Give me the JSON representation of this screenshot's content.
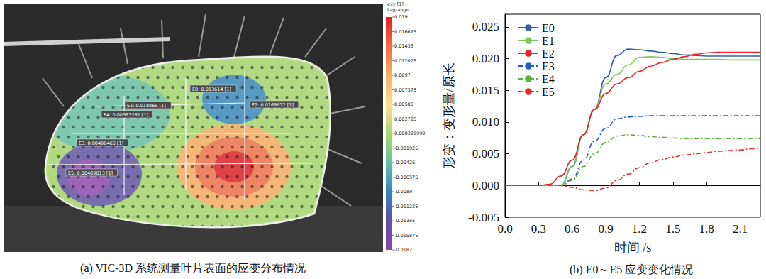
{
  "strain_map": {
    "caption": "(a) VIC-3D 系统测量叶片表面的应变分布情况",
    "colorbar": {
      "title": "exy [1] - Lagrange",
      "ticks": [
        0.019,
        0.016675,
        0.01435,
        0.012025,
        0.0097,
        0.007375,
        0.00505,
        0.002725,
        0.000399999,
        -0.001925,
        -0.00425,
        -0.006575,
        -0.0089,
        -0.011225,
        -0.01355,
        -0.015875,
        -0.0182
      ],
      "colors": [
        "#e31a1c",
        "#f46d43",
        "#fdae61",
        "#fee08b",
        "#a6d96a",
        "#66c2a5",
        "#3288bd",
        "#5e4fa2",
        "#8e44ad"
      ]
    },
    "points": [
      "E0: 0.013614 [1]",
      "E1: 0.018865 [1]",
      "E2: 0.0169972 [1]",
      "E4: 0.00383261 [1]",
      "E3: 0.00496465 [1]",
      "E5: 0.00489013 [1]"
    ]
  },
  "chart_data": {
    "type": "line",
    "caption": "(b) E0～E5 应变变化情况",
    "xlabel": "时间 /s",
    "ylabel": "形变：变形量/原长",
    "x": [
      0,
      0.1,
      0.2,
      0.3,
      0.4,
      0.5,
      0.6,
      0.7,
      0.8,
      0.9,
      1.0,
      1.1,
      1.2,
      1.3,
      1.4,
      1.5,
      1.6,
      1.7,
      1.8,
      1.9,
      2.0,
      2.1,
      2.2,
      2.28
    ],
    "series": [
      {
        "name": "E0",
        "color": "#3a5fa8",
        "line_style": "solid",
        "values": [
          0,
          0,
          0,
          0,
          0,
          0,
          0.003,
          0.008,
          0.012,
          0.017,
          0.0205,
          0.0215,
          0.0214,
          0.0212,
          0.021,
          0.0208,
          0.0206,
          0.0205,
          0.0204,
          0.0204,
          0.0204,
          0.0204,
          0.0204,
          0.0204
        ]
      },
      {
        "name": "E1",
        "color": "#7cc65a",
        "line_style": "solid",
        "values": [
          0,
          0,
          0,
          0,
          0,
          0,
          0.003,
          0.008,
          0.012,
          0.016,
          0.0175,
          0.019,
          0.0202,
          0.0203,
          0.0202,
          0.02,
          0.0199,
          0.0199,
          0.0199,
          0.0199,
          0.0198,
          0.0198,
          0.0198,
          0.0198
        ]
      },
      {
        "name": "E2",
        "color": "#e8262a",
        "line_style": "solid",
        "values": [
          0,
          0,
          0,
          0,
          0.0002,
          0.0015,
          0.004,
          0.008,
          0.012,
          0.0145,
          0.016,
          0.017,
          0.018,
          0.0188,
          0.0194,
          0.0199,
          0.0203,
          0.0207,
          0.0209,
          0.021,
          0.021,
          0.021,
          0.021,
          0.021
        ]
      },
      {
        "name": "E3",
        "color": "#2060c0",
        "line_style": "dashdot",
        "values": [
          0,
          0,
          0,
          0,
          0,
          0,
          0.001,
          0.004,
          0.007,
          0.009,
          0.0105,
          0.0108,
          0.0109,
          0.011,
          0.011,
          0.011,
          0.011,
          0.011,
          0.011,
          0.011,
          0.011,
          0.011,
          0.011,
          0.011
        ]
      },
      {
        "name": "E4",
        "color": "#5bb33b",
        "line_style": "dashdot",
        "values": [
          0,
          0,
          0,
          0,
          0,
          0,
          0.0008,
          0.003,
          0.005,
          0.0068,
          0.0078,
          0.008,
          0.0079,
          0.0077,
          0.0076,
          0.0075,
          0.0074,
          0.0074,
          0.0074,
          0.0074,
          0.0074,
          0.0074,
          0.0074,
          0.0074
        ]
      },
      {
        "name": "E5",
        "color": "#e0302a",
        "line_style": "dashdot",
        "values": [
          0,
          0,
          0,
          0,
          0,
          0,
          -0.0003,
          -0.0007,
          -0.0008,
          -0.0004,
          0.0008,
          0.0018,
          0.0028,
          0.0036,
          0.0041,
          0.0045,
          0.0048,
          0.005,
          0.0052,
          0.0054,
          0.0055,
          0.0056,
          0.0058,
          0.0059
        ]
      }
    ],
    "xlim": [
      0,
      2.28
    ],
    "ylim": [
      -0.005,
      0.027
    ],
    "xticks": [
      {
        "value": 0,
        "label": "0.0"
      },
      0.3,
      0.6,
      0.9,
      1.2,
      1.5,
      1.8,
      2.1
    ],
    "yticks": [
      -0.005,
      {
        "value": 0,
        "label": "0.000"
      },
      0.005,
      {
        "value": 0.01,
        "label": "0.010"
      },
      0.015,
      {
        "value": 0.02,
        "label": "0.020"
      },
      0.025
    ],
    "grid": false,
    "legend": "upper left"
  }
}
